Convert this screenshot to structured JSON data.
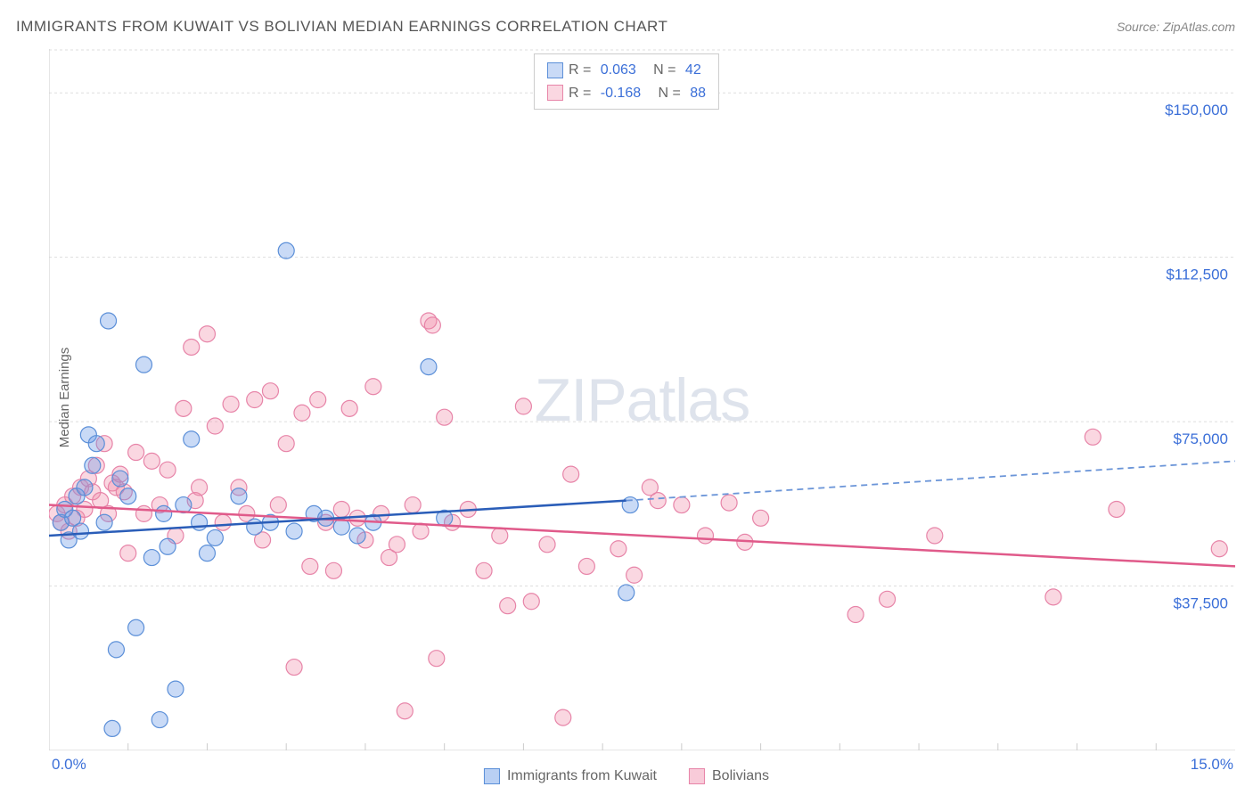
{
  "title": "IMMIGRANTS FROM KUWAIT VS BOLIVIAN MEDIAN EARNINGS CORRELATION CHART",
  "source": "Source: ZipAtlas.com",
  "y_axis_label": "Median Earnings",
  "watermark": "ZIPatlas",
  "chart": {
    "type": "scatter",
    "xlim": [
      0,
      15
    ],
    "ylim": [
      0,
      160000
    ],
    "x_ticks": [
      0,
      5,
      10,
      15
    ],
    "x_tick_labels": {
      "0": "0.0%",
      "15": "15.0%"
    },
    "y_ticks": [
      37500,
      75000,
      112500,
      150000
    ],
    "y_tick_labels": [
      "$37,500",
      "$75,000",
      "$112,500",
      "$150,000"
    ],
    "grid_color": "#dddddd",
    "axis_color": "#cccccc",
    "background_color": "#ffffff",
    "tick_label_color": "#3b6fd8",
    "series": [
      {
        "name": "Immigrants from Kuwait",
        "marker_fill": "rgba(100,150,230,0.35)",
        "marker_stroke": "#5b8fd8",
        "marker_radius": 9,
        "trend_color": "#2a5db8",
        "trend_dash_color": "#6b95d8",
        "R": "0.063",
        "N": "42",
        "trend": {
          "x1": 0,
          "y1": 49000,
          "x2_solid": 7.3,
          "y2_solid": 57000,
          "x2": 15,
          "y2": 66000
        },
        "points": [
          [
            0.15,
            52000
          ],
          [
            0.2,
            55000
          ],
          [
            0.25,
            48000
          ],
          [
            0.3,
            53000
          ],
          [
            0.35,
            58000
          ],
          [
            0.4,
            50000
          ],
          [
            0.45,
            60000
          ],
          [
            0.5,
            72000
          ],
          [
            0.55,
            65000
          ],
          [
            0.6,
            70000
          ],
          [
            0.7,
            52000
          ],
          [
            0.75,
            98000
          ],
          [
            0.8,
            5000
          ],
          [
            0.85,
            23000
          ],
          [
            0.9,
            62000
          ],
          [
            1.0,
            58000
          ],
          [
            1.1,
            28000
          ],
          [
            1.2,
            88000
          ],
          [
            1.3,
            44000
          ],
          [
            1.4,
            7000
          ],
          [
            1.45,
            54000
          ],
          [
            1.5,
            46500
          ],
          [
            1.6,
            14000
          ],
          [
            1.7,
            56000
          ],
          [
            1.8,
            71000
          ],
          [
            1.9,
            52000
          ],
          [
            2.0,
            45000
          ],
          [
            2.1,
            48500
          ],
          [
            2.4,
            58000
          ],
          [
            2.6,
            51000
          ],
          [
            2.8,
            52000
          ],
          [
            3.0,
            114000
          ],
          [
            3.1,
            50000
          ],
          [
            3.35,
            54000
          ],
          [
            3.5,
            53000
          ],
          [
            3.7,
            51000
          ],
          [
            3.9,
            49000
          ],
          [
            4.1,
            52000
          ],
          [
            4.8,
            87500
          ],
          [
            5.0,
            53000
          ],
          [
            7.3,
            36000
          ],
          [
            7.35,
            56000
          ]
        ]
      },
      {
        "name": "Bolivians",
        "marker_fill": "rgba(240,140,170,0.35)",
        "marker_stroke": "#e784a8",
        "marker_radius": 9,
        "trend_color": "#e05a8a",
        "R": "-0.168",
        "N": "88",
        "trend": {
          "x1": 0,
          "y1": 56000,
          "x2": 15,
          "y2": 42000
        },
        "points": [
          [
            0.1,
            54000
          ],
          [
            0.15,
            52000
          ],
          [
            0.2,
            56000
          ],
          [
            0.25,
            50000
          ],
          [
            0.3,
            58000
          ],
          [
            0.35,
            53000
          ],
          [
            0.4,
            60000
          ],
          [
            0.45,
            55000
          ],
          [
            0.5,
            62000
          ],
          [
            0.55,
            59000
          ],
          [
            0.6,
            65000
          ],
          [
            0.65,
            57000
          ],
          [
            0.7,
            70000
          ],
          [
            0.75,
            54000
          ],
          [
            0.8,
            61000
          ],
          [
            0.85,
            60000
          ],
          [
            0.9,
            63000
          ],
          [
            0.95,
            59000
          ],
          [
            1.0,
            45000
          ],
          [
            1.1,
            68000
          ],
          [
            1.2,
            54000
          ],
          [
            1.3,
            66000
          ],
          [
            1.4,
            56000
          ],
          [
            1.5,
            64000
          ],
          [
            1.6,
            49000
          ],
          [
            1.7,
            78000
          ],
          [
            1.8,
            92000
          ],
          [
            1.85,
            57000
          ],
          [
            1.9,
            60000
          ],
          [
            2.0,
            95000
          ],
          [
            2.1,
            74000
          ],
          [
            2.2,
            52000
          ],
          [
            2.3,
            79000
          ],
          [
            2.4,
            60000
          ],
          [
            2.5,
            54000
          ],
          [
            2.6,
            80000
          ],
          [
            2.7,
            48000
          ],
          [
            2.8,
            82000
          ],
          [
            2.9,
            56000
          ],
          [
            3.0,
            70000
          ],
          [
            3.1,
            19000
          ],
          [
            3.2,
            77000
          ],
          [
            3.3,
            42000
          ],
          [
            3.4,
            80000
          ],
          [
            3.5,
            52000
          ],
          [
            3.6,
            41000
          ],
          [
            3.7,
            55000
          ],
          [
            3.8,
            78000
          ],
          [
            3.9,
            53000
          ],
          [
            4.0,
            48000
          ],
          [
            4.1,
            83000
          ],
          [
            4.2,
            54000
          ],
          [
            4.3,
            44000
          ],
          [
            4.4,
            47000
          ],
          [
            4.5,
            9000
          ],
          [
            4.6,
            56000
          ],
          [
            4.7,
            50000
          ],
          [
            4.8,
            98000
          ],
          [
            4.85,
            97000
          ],
          [
            4.9,
            21000
          ],
          [
            5.0,
            76000
          ],
          [
            5.1,
            52000
          ],
          [
            5.3,
            55000
          ],
          [
            5.5,
            41000
          ],
          [
            5.7,
            49000
          ],
          [
            5.8,
            33000
          ],
          [
            6.0,
            78500
          ],
          [
            6.1,
            34000
          ],
          [
            6.3,
            47000
          ],
          [
            6.5,
            7500
          ],
          [
            6.6,
            63000
          ],
          [
            6.8,
            42000
          ],
          [
            7.2,
            46000
          ],
          [
            7.4,
            40000
          ],
          [
            7.6,
            60000
          ],
          [
            7.7,
            57000
          ],
          [
            8.0,
            56000
          ],
          [
            8.3,
            49000
          ],
          [
            8.6,
            56500
          ],
          [
            8.8,
            47500
          ],
          [
            9.0,
            53000
          ],
          [
            10.2,
            31000
          ],
          [
            10.6,
            34500
          ],
          [
            11.2,
            49000
          ],
          [
            12.7,
            35000
          ],
          [
            13.2,
            71500
          ],
          [
            13.5,
            55000
          ],
          [
            14.8,
            46000
          ]
        ]
      }
    ]
  },
  "legend_bottom": [
    {
      "label": "Immigrants from Kuwait",
      "fill": "rgba(100,150,230,0.45)",
      "stroke": "#5b8fd8"
    },
    {
      "label": "Bolivians",
      "fill": "rgba(240,140,170,0.45)",
      "stroke": "#e784a8"
    }
  ]
}
